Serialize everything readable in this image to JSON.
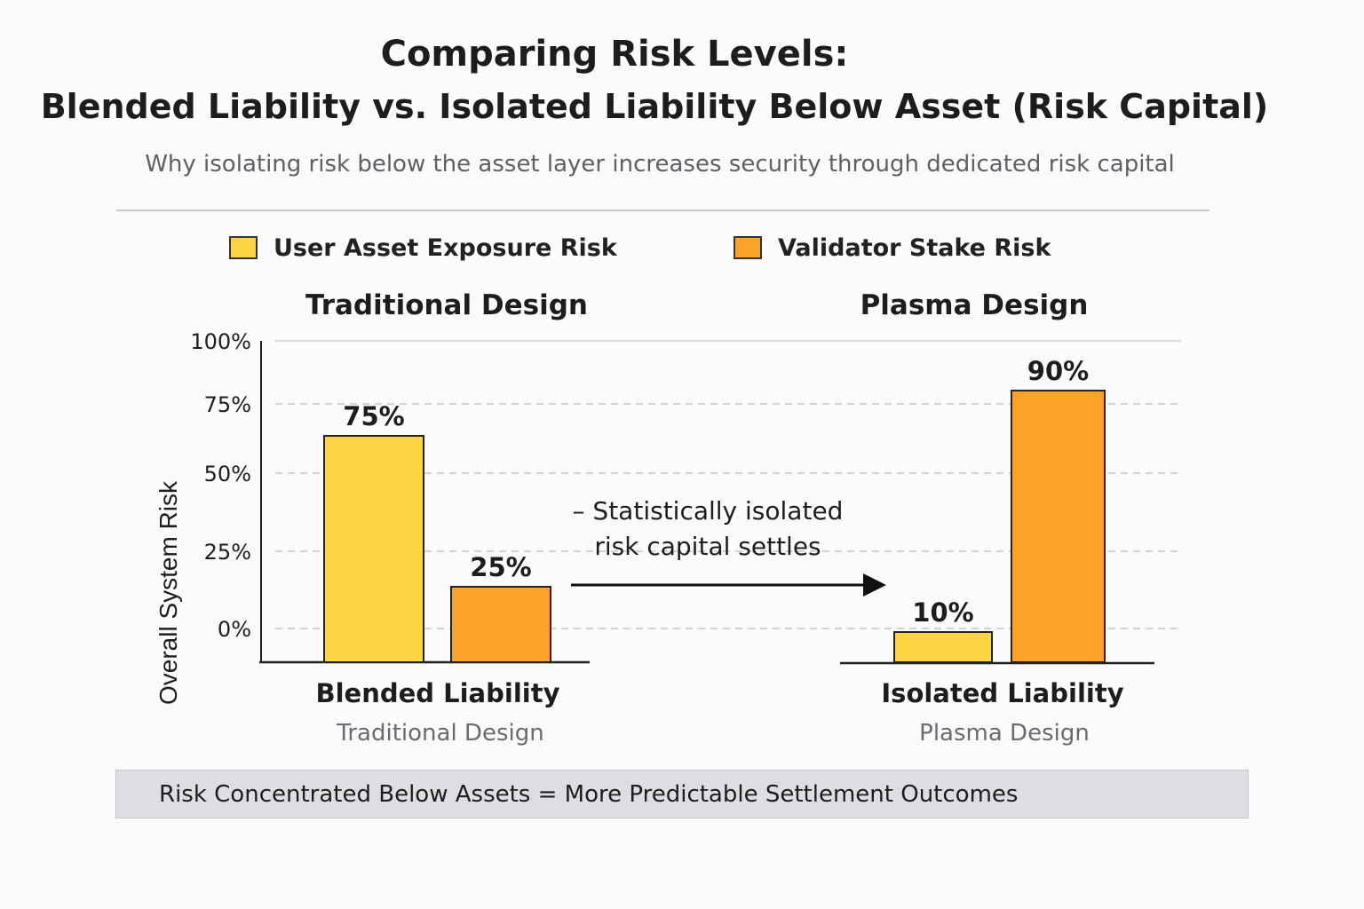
{
  "title": "Comparing Risk Levels:",
  "subtitle_line": "Blended Liability vs. Isolated Liability Below Asset (Risk Capital)",
  "description": "Why isolating risk below the asset layer increases security through dedicated risk capital",
  "colors": {
    "user_asset": "#fdd544",
    "validator_stake": "#fba227",
    "background": "#fbfbfb",
    "banner": "#dedde2"
  },
  "chart_data": {
    "type": "bar",
    "ylabel": "Overall System Risk",
    "yticks": [
      "100%",
      "75%",
      "50%",
      "25%",
      "0%"
    ],
    "ylim": [
      0,
      100
    ],
    "grid": true,
    "legend_position": "top",
    "series": [
      {
        "name": "User Asset Exposure Risk",
        "color": "#fdd544"
      },
      {
        "name": "Validator Stake Risk",
        "color": "#fba227"
      }
    ],
    "groups": [
      {
        "heading": "Traditional Design",
        "category": "Blended Liability",
        "caption": "Traditional Design",
        "bars": [
          {
            "series": "User Asset Exposure Risk",
            "value": 75,
            "label": "75%"
          },
          {
            "series": "Validator Stake Risk",
            "value": 25,
            "label": "25%"
          }
        ]
      },
      {
        "heading": "Plasma Design",
        "category": "Isolated Liability",
        "caption": "Plasma Design",
        "bars": [
          {
            "series": "User Asset Exposure Risk",
            "value": 10,
            "label": "10%"
          },
          {
            "series": "Validator Stake Risk",
            "value": 90,
            "label": "90%"
          }
        ]
      }
    ],
    "annotation": [
      "– Statistically isolated",
      "risk capital settles"
    ]
  },
  "footer": "Risk Concentrated Below Assets = More Predictable Settlement Outcomes"
}
